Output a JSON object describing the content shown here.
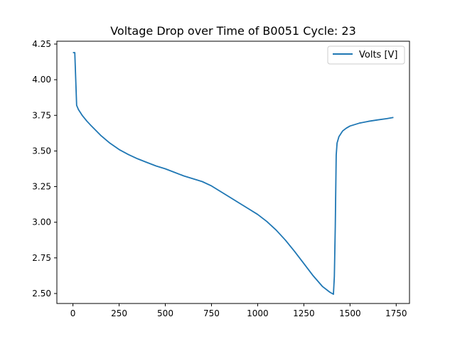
{
  "chart_data": {
    "type": "line",
    "title": "Voltage Drop over Time of B0051 Cycle: 23",
    "xlabel": "",
    "ylabel": "",
    "xlim": [
      -87,
      1822
    ],
    "ylim": [
      2.43,
      4.27
    ],
    "x_ticks": [
      0,
      250,
      500,
      750,
      1000,
      1250,
      1500,
      1750
    ],
    "y_ticks": [
      2.5,
      2.75,
      3.0,
      3.25,
      3.5,
      3.75,
      4.0,
      4.25
    ],
    "x_tick_labels": [
      "0",
      "250",
      "500",
      "750",
      "1000",
      "1250",
      "1500",
      "1750"
    ],
    "y_tick_labels": [
      "2.50",
      "2.75",
      "3.00",
      "3.25",
      "3.50",
      "3.75",
      "4.00",
      "4.25"
    ],
    "grid": false,
    "legend_position": "upper right",
    "series": [
      {
        "name": "Volts [V]",
        "color": "#1f77b4",
        "x": [
          0,
          10,
          20,
          30,
          50,
          75,
          100,
          150,
          200,
          250,
          300,
          350,
          400,
          450,
          500,
          550,
          600,
          650,
          700,
          750,
          800,
          850,
          900,
          950,
          1000,
          1050,
          1100,
          1150,
          1200,
          1250,
          1300,
          1350,
          1390,
          1410,
          1415,
          1420,
          1425,
          1430,
          1440,
          1460,
          1480,
          1500,
          1550,
          1600,
          1650,
          1700,
          1735
        ],
        "y": [
          4.19,
          4.19,
          3.82,
          3.79,
          3.75,
          3.71,
          3.675,
          3.61,
          3.555,
          3.51,
          3.475,
          3.445,
          3.42,
          3.395,
          3.375,
          3.35,
          3.325,
          3.305,
          3.285,
          3.255,
          3.215,
          3.175,
          3.135,
          3.095,
          3.055,
          3.005,
          2.945,
          2.875,
          2.795,
          2.71,
          2.625,
          2.55,
          2.51,
          2.495,
          2.62,
          2.97,
          3.47,
          3.555,
          3.6,
          3.64,
          3.66,
          3.675,
          3.695,
          3.708,
          3.718,
          3.727,
          3.735
        ]
      }
    ]
  }
}
